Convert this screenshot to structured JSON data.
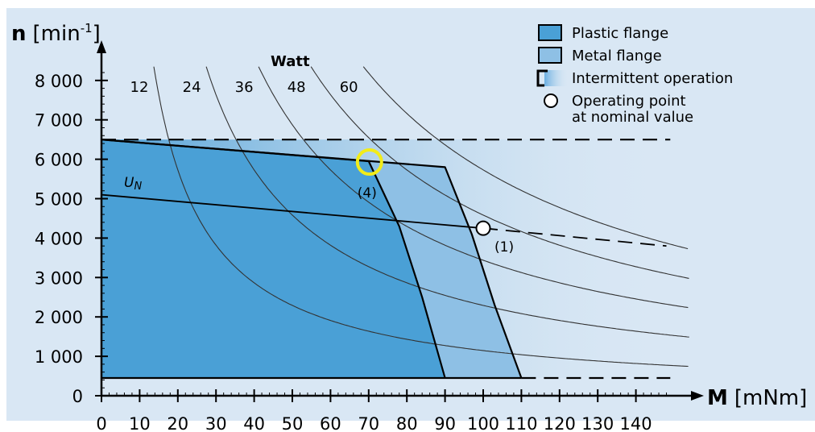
{
  "chart_data": {
    "type": "line",
    "xlabel": {
      "bold": "M",
      "unit": "[mNm]"
    },
    "ylabel": {
      "bold": "n",
      "unit_prefix": "[min",
      "unit_sup": "-1",
      "unit_suffix": "]"
    },
    "xlim": [
      0,
      150
    ],
    "ylim": [
      0,
      8500
    ],
    "x_ticks": [
      0,
      10,
      20,
      30,
      40,
      50,
      60,
      70,
      80,
      90,
      100,
      110,
      120,
      130,
      140
    ],
    "x_tick_labels": [
      "0",
      "10",
      "20",
      "30",
      "40",
      "50",
      "60",
      "70",
      "80",
      "90",
      "100",
      "110",
      "120",
      "130",
      "140"
    ],
    "y_ticks": [
      0,
      1000,
      2000,
      3000,
      4000,
      5000,
      6000,
      7000,
      8000
    ],
    "y_tick_labels": [
      "0",
      "1 000",
      "2 000",
      "3 000",
      "4 000",
      "5 000",
      "6 000",
      "7 000",
      "8 000"
    ],
    "power_title": "Watt",
    "power_curves": [
      {
        "label": "12",
        "watt": 12
      },
      {
        "label": "24",
        "watt": 24
      },
      {
        "label": "36",
        "watt": 36
      },
      {
        "label": "48",
        "watt": 48
      },
      {
        "label": "60",
        "watt": 60
      }
    ],
    "plastic_flange_region": [
      [
        0,
        450
      ],
      [
        0,
        6500
      ],
      [
        70,
        5950
      ],
      [
        78,
        4300
      ],
      [
        84,
        2500
      ],
      [
        90,
        450
      ]
    ],
    "metal_flange_region": [
      [
        0,
        450
      ],
      [
        0,
        6500
      ],
      [
        90,
        5800
      ],
      [
        97,
        4100
      ],
      [
        103,
        2300
      ],
      [
        110,
        450
      ]
    ],
    "intermittent_top_speed": 6500,
    "intermittent_bottom_speed": 450,
    "intermittent_x_range": [
      0,
      149
    ],
    "un_line": {
      "label": "U",
      "sub": "N",
      "solid": [
        [
          0,
          5100
        ],
        [
          100,
          4250
        ]
      ],
      "dashed": [
        [
          100,
          4250
        ],
        [
          148,
          3800
        ]
      ]
    },
    "operating_point": {
      "x": 100,
      "y": 4250,
      "label": "(1)"
    },
    "highlight_point": {
      "x": 70,
      "y": 5950,
      "label": "(4)"
    },
    "legend": [
      {
        "key": "plastic",
        "label": "Plastic flange"
      },
      {
        "key": "metal",
        "label": "Metal flange"
      },
      {
        "key": "intermittent",
        "label": "Intermittent operation"
      },
      {
        "key": "operating",
        "label_lines": [
          "Operating point",
          "at nominal value"
        ]
      }
    ],
    "colors": {
      "background": "#d9e7f4",
      "plastic": "#4aa0d6",
      "metal": "#8ec0e5",
      "intermittent_start": "#4d9fd6",
      "highlight": "#f2ec19",
      "line": "#000000",
      "curve": "#333333"
    }
  }
}
